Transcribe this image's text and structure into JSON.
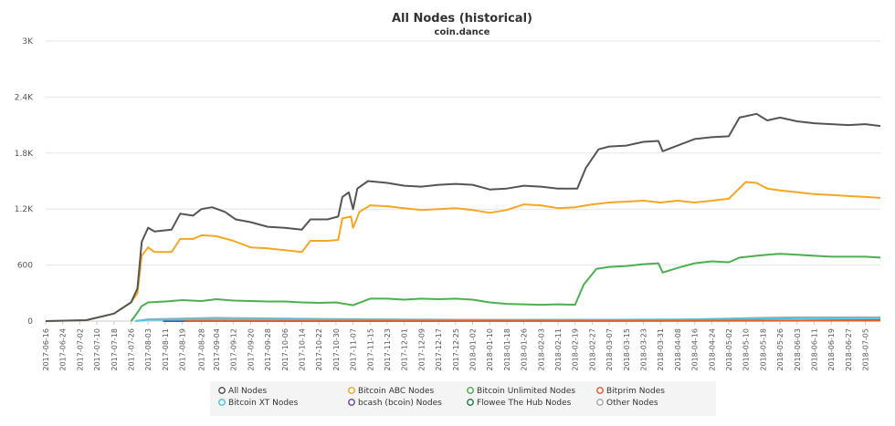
{
  "chart_data": {
    "type": "line",
    "title": "All Nodes (historical)",
    "subtitle": "coin.dance",
    "xlabel": "",
    "ylabel": "",
    "ylim": [
      0,
      3000
    ],
    "y_ticks": [
      0,
      600,
      1200,
      1800,
      2400,
      3000
    ],
    "y_tick_labels": [
      "0",
      "600",
      "1.2K",
      "1.8K",
      "2.4K",
      "3K"
    ],
    "x_range": [
      "2017-06-16",
      "2018-07-12"
    ],
    "x_ticks": [
      "2017-06-16",
      "2017-06-24",
      "2017-07-02",
      "2017-07-10",
      "2017-07-18",
      "2017-07-26",
      "2017-08-03",
      "2017-08-11",
      "2017-08-19",
      "2017-08-28",
      "2017-09-04",
      "2017-09-12",
      "2017-09-20",
      "2017-09-28",
      "2017-10-06",
      "2017-10-14",
      "2017-10-22",
      "2017-10-30",
      "2017-11-07",
      "2017-11-15",
      "2017-11-23",
      "2017-12-01",
      "2017-12-09",
      "2017-12-17",
      "2017-12-25",
      "2018-01-02",
      "2018-01-10",
      "2018-01-18",
      "2018-01-26",
      "2018-02-03",
      "2018-02-11",
      "2018-02-19",
      "2018-02-27",
      "2018-03-07",
      "2018-03-15",
      "2018-03-23",
      "2018-03-31",
      "2018-04-08",
      "2018-04-16",
      "2018-04-24",
      "2018-05-02",
      "2018-05-10",
      "2018-05-18",
      "2018-05-26",
      "2018-06-03",
      "2018-06-11",
      "2018-06-19",
      "2018-06-27",
      "2018-07-05"
    ],
    "grid": true,
    "legend_position": "bottom",
    "series": [
      {
        "name": "All Nodes",
        "color": "#555555",
        "points": [
          [
            "2017-06-16",
            0
          ],
          [
            "2017-07-05",
            10
          ],
          [
            "2017-07-18",
            80
          ],
          [
            "2017-07-26",
            200
          ],
          [
            "2017-07-29",
            350
          ],
          [
            "2017-07-31",
            850
          ],
          [
            "2017-08-03",
            1000
          ],
          [
            "2017-08-06",
            960
          ],
          [
            "2017-08-14",
            980
          ],
          [
            "2017-08-18",
            1150
          ],
          [
            "2017-08-24",
            1130
          ],
          [
            "2017-08-28",
            1200
          ],
          [
            "2017-09-02",
            1220
          ],
          [
            "2017-09-08",
            1170
          ],
          [
            "2017-09-13",
            1090
          ],
          [
            "2017-09-20",
            1060
          ],
          [
            "2017-09-28",
            1010
          ],
          [
            "2017-10-06",
            1000
          ],
          [
            "2017-10-14",
            980
          ],
          [
            "2017-10-18",
            1090
          ],
          [
            "2017-10-26",
            1090
          ],
          [
            "2017-10-31",
            1120
          ],
          [
            "2017-11-02",
            1330
          ],
          [
            "2017-11-05",
            1380
          ],
          [
            "2017-11-07",
            1200
          ],
          [
            "2017-11-09",
            1420
          ],
          [
            "2017-11-14",
            1500
          ],
          [
            "2017-11-23",
            1480
          ],
          [
            "2017-12-01",
            1450
          ],
          [
            "2017-12-09",
            1440
          ],
          [
            "2017-12-17",
            1460
          ],
          [
            "2017-12-25",
            1470
          ],
          [
            "2018-01-02",
            1460
          ],
          [
            "2018-01-10",
            1410
          ],
          [
            "2018-01-18",
            1420
          ],
          [
            "2018-01-26",
            1450
          ],
          [
            "2018-02-03",
            1440
          ],
          [
            "2018-02-11",
            1420
          ],
          [
            "2018-02-20",
            1420
          ],
          [
            "2018-02-24",
            1640
          ],
          [
            "2018-03-02",
            1840
          ],
          [
            "2018-03-07",
            1870
          ],
          [
            "2018-03-15",
            1880
          ],
          [
            "2018-03-23",
            1920
          ],
          [
            "2018-03-30",
            1930
          ],
          [
            "2018-04-01",
            1820
          ],
          [
            "2018-04-08",
            1880
          ],
          [
            "2018-04-16",
            1950
          ],
          [
            "2018-04-24",
            1970
          ],
          [
            "2018-05-02",
            1980
          ],
          [
            "2018-05-07",
            2180
          ],
          [
            "2018-05-15",
            2220
          ],
          [
            "2018-05-20",
            2150
          ],
          [
            "2018-05-26",
            2180
          ],
          [
            "2018-06-03",
            2140
          ],
          [
            "2018-06-11",
            2120
          ],
          [
            "2018-06-19",
            2110
          ],
          [
            "2018-06-27",
            2100
          ],
          [
            "2018-07-05",
            2110
          ],
          [
            "2018-07-12",
            2090
          ]
        ]
      },
      {
        "name": "Bitcoin ABC Nodes",
        "color": "#F5A623",
        "points": [
          [
            "2017-06-16",
            0
          ],
          [
            "2017-07-05",
            10
          ],
          [
            "2017-07-18",
            80
          ],
          [
            "2017-07-26",
            200
          ],
          [
            "2017-07-29",
            300
          ],
          [
            "2017-07-31",
            700
          ],
          [
            "2017-08-03",
            790
          ],
          [
            "2017-08-06",
            740
          ],
          [
            "2017-08-14",
            740
          ],
          [
            "2017-08-18",
            880
          ],
          [
            "2017-08-24",
            880
          ],
          [
            "2017-08-28",
            920
          ],
          [
            "2017-09-04",
            910
          ],
          [
            "2017-09-12",
            860
          ],
          [
            "2017-09-20",
            790
          ],
          [
            "2017-09-28",
            780
          ],
          [
            "2017-10-06",
            760
          ],
          [
            "2017-10-14",
            740
          ],
          [
            "2017-10-18",
            860
          ],
          [
            "2017-10-26",
            860
          ],
          [
            "2017-10-31",
            870
          ],
          [
            "2017-11-02",
            1100
          ],
          [
            "2017-11-06",
            1120
          ],
          [
            "2017-11-07",
            1000
          ],
          [
            "2017-11-10",
            1170
          ],
          [
            "2017-11-15",
            1240
          ],
          [
            "2017-11-23",
            1230
          ],
          [
            "2017-12-01",
            1210
          ],
          [
            "2017-12-09",
            1190
          ],
          [
            "2017-12-17",
            1200
          ],
          [
            "2017-12-25",
            1210
          ],
          [
            "2018-01-02",
            1190
          ],
          [
            "2018-01-10",
            1160
          ],
          [
            "2018-01-18",
            1190
          ],
          [
            "2018-01-26",
            1250
          ],
          [
            "2018-02-03",
            1240
          ],
          [
            "2018-02-11",
            1210
          ],
          [
            "2018-02-19",
            1220
          ],
          [
            "2018-02-27",
            1250
          ],
          [
            "2018-03-07",
            1270
          ],
          [
            "2018-03-15",
            1280
          ],
          [
            "2018-03-23",
            1290
          ],
          [
            "2018-03-31",
            1270
          ],
          [
            "2018-04-08",
            1290
          ],
          [
            "2018-04-16",
            1270
          ],
          [
            "2018-04-24",
            1290
          ],
          [
            "2018-05-02",
            1310
          ],
          [
            "2018-05-10",
            1490
          ],
          [
            "2018-05-15",
            1480
          ],
          [
            "2018-05-20",
            1420
          ],
          [
            "2018-05-26",
            1400
          ],
          [
            "2018-06-03",
            1380
          ],
          [
            "2018-06-11",
            1360
          ],
          [
            "2018-06-19",
            1350
          ],
          [
            "2018-06-27",
            1340
          ],
          [
            "2018-07-05",
            1330
          ],
          [
            "2018-07-12",
            1320
          ]
        ]
      },
      {
        "name": "Bitcoin Unlimited Nodes",
        "color": "#4CAF50",
        "points": [
          [
            "2017-07-26",
            0
          ],
          [
            "2017-07-28",
            60
          ],
          [
            "2017-07-31",
            160
          ],
          [
            "2017-08-03",
            200
          ],
          [
            "2017-08-11",
            210
          ],
          [
            "2017-08-19",
            225
          ],
          [
            "2017-08-28",
            215
          ],
          [
            "2017-09-04",
            235
          ],
          [
            "2017-09-12",
            220
          ],
          [
            "2017-09-20",
            215
          ],
          [
            "2017-09-28",
            210
          ],
          [
            "2017-10-06",
            210
          ],
          [
            "2017-10-14",
            200
          ],
          [
            "2017-10-22",
            195
          ],
          [
            "2017-10-30",
            200
          ],
          [
            "2017-11-07",
            170
          ],
          [
            "2017-11-15",
            240
          ],
          [
            "2017-11-23",
            240
          ],
          [
            "2017-12-01",
            230
          ],
          [
            "2017-12-09",
            240
          ],
          [
            "2017-12-17",
            235
          ],
          [
            "2017-12-25",
            240
          ],
          [
            "2018-01-02",
            230
          ],
          [
            "2018-01-10",
            200
          ],
          [
            "2018-01-18",
            185
          ],
          [
            "2018-01-26",
            180
          ],
          [
            "2018-02-03",
            175
          ],
          [
            "2018-02-11",
            180
          ],
          [
            "2018-02-19",
            175
          ],
          [
            "2018-02-23",
            390
          ],
          [
            "2018-03-01",
            560
          ],
          [
            "2018-03-07",
            580
          ],
          [
            "2018-03-15",
            590
          ],
          [
            "2018-03-23",
            610
          ],
          [
            "2018-03-30",
            620
          ],
          [
            "2018-04-01",
            520
          ],
          [
            "2018-04-08",
            570
          ],
          [
            "2018-04-16",
            620
          ],
          [
            "2018-04-24",
            640
          ],
          [
            "2018-05-02",
            630
          ],
          [
            "2018-05-07",
            680
          ],
          [
            "2018-05-15",
            700
          ],
          [
            "2018-05-20",
            710
          ],
          [
            "2018-05-26",
            720
          ],
          [
            "2018-06-03",
            710
          ],
          [
            "2018-06-11",
            700
          ],
          [
            "2018-06-19",
            690
          ],
          [
            "2018-06-27",
            690
          ],
          [
            "2018-07-05",
            690
          ],
          [
            "2018-07-12",
            680
          ]
        ]
      },
      {
        "name": "Bitprim Nodes",
        "color": "#E85D2A",
        "points": [
          [
            "2017-08-20",
            0
          ],
          [
            "2018-07-12",
            5
          ]
        ]
      },
      {
        "name": "Bitcoin XT Nodes",
        "color": "#4FC3E0",
        "points": [
          [
            "2017-07-28",
            0
          ],
          [
            "2017-08-03",
            15
          ],
          [
            "2017-10-06",
            20
          ],
          [
            "2018-01-02",
            10
          ],
          [
            "2018-05-02",
            20
          ],
          [
            "2018-06-03",
            30
          ],
          [
            "2018-07-12",
            30
          ]
        ]
      },
      {
        "name": "bcash (bcoin) Nodes",
        "color": "#6A4C9C",
        "points": [
          [
            "2017-08-10",
            0
          ],
          [
            "2018-07-12",
            5
          ]
        ]
      },
      {
        "name": "Flowee The Hub Nodes",
        "color": "#2E7D4F",
        "points": [
          [
            "2017-08-10",
            0
          ],
          [
            "2018-05-10",
            5
          ],
          [
            "2018-07-12",
            10
          ]
        ]
      },
      {
        "name": "Other Nodes",
        "color": "#AAAAAA",
        "points": [
          [
            "2017-07-28",
            0
          ],
          [
            "2017-08-03",
            20
          ],
          [
            "2017-09-04",
            35
          ],
          [
            "2017-10-14",
            25
          ],
          [
            "2017-11-15",
            20
          ],
          [
            "2018-01-02",
            15
          ],
          [
            "2018-04-08",
            15
          ],
          [
            "2018-05-18",
            35
          ],
          [
            "2018-06-03",
            40
          ],
          [
            "2018-07-12",
            40
          ]
        ]
      }
    ]
  }
}
